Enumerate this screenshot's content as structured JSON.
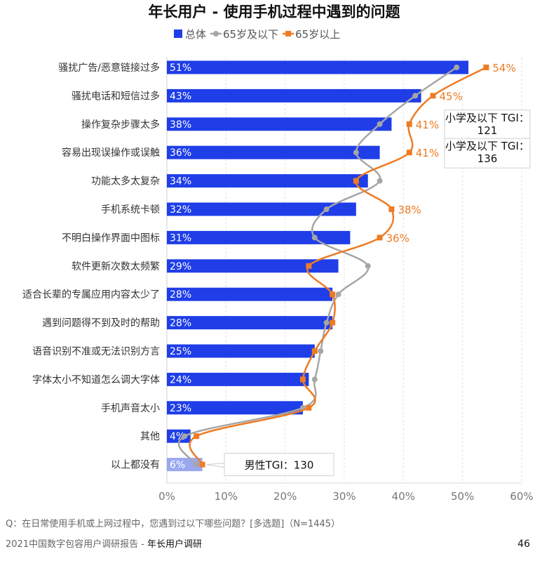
{
  "chart_data": {
    "type": "bar",
    "orientation": "horizontal",
    "title": "年长用户 - 使用手机过程中遇到的问题",
    "categories": [
      "骚扰广告/恶意链接过多",
      "骚扰电话和短信过多",
      "操作复杂步骤太多",
      "容易出现误操作或误触",
      "功能太多太复杂",
      "手机系统卡顿",
      "不明白操作界面中图标",
      "软件更新次数太频繁",
      "适合长辈的专属应用内容太少了",
      "遇到问题得不到及时的帮助",
      "语音识别不准或无法识别方言",
      "字体太小不知道怎么调大字体",
      "手机声音太小",
      "其他",
      "以上都没有"
    ],
    "series": [
      {
        "name": "总体",
        "type": "bar",
        "color": "#1f3ee8",
        "values": [
          51,
          43,
          38,
          36,
          34,
          32,
          31,
          29,
          28,
          28,
          25,
          24,
          23,
          4,
          6
        ],
        "labels": [
          "51%",
          "43%",
          "38%",
          "36%",
          "34%",
          "32%",
          "31%",
          "29%",
          "28%",
          "28%",
          "25%",
          "24%",
          "23%",
          "4%",
          "6%"
        ]
      },
      {
        "name": "65岁及以下",
        "type": "line",
        "color": "#a6a6a6",
        "marker": "circle",
        "values": [
          49,
          42,
          36,
          32,
          36,
          27,
          25,
          34,
          29,
          27,
          26,
          25,
          23,
          3,
          5
        ]
      },
      {
        "name": "65岁以上",
        "type": "line",
        "color": "#ee7b23",
        "marker": "square",
        "values": [
          54,
          45,
          41,
          41,
          32,
          38,
          36,
          24,
          28,
          28,
          25,
          23,
          24,
          5,
          6
        ],
        "labels": [
          "54%",
          "45%",
          "41%",
          "41%",
          "",
          "38%",
          "36%",
          "",
          "",
          "",
          "",
          "",
          "",
          "",
          ""
        ]
      }
    ],
    "highlight_bar_color": "#9aa8f0",
    "xlim": [
      0,
      60
    ],
    "xticks": [
      "0%",
      "10%",
      "20%",
      "30%",
      "40%",
      "50%",
      "60%"
    ],
    "grid": "vertical dashed",
    "legend": "top",
    "annotations": [
      {
        "row": 2,
        "lines": [
          "小学及以下 TGI：",
          "121"
        ]
      },
      {
        "row": 3,
        "lines": [
          "小学及以下 TGI：",
          "136"
        ]
      },
      {
        "row": 14,
        "lines": [
          "男性TGI：130"
        ]
      }
    ]
  },
  "footer": {
    "question": "Q：在日常使用手机或上网过程中，您遇到过以下哪些问题？[多选题]（N=1445）",
    "source_prefix": "2021中国数字包容用户调研报告 - ",
    "source_bold": "年长用户调研",
    "page_number": "46"
  }
}
